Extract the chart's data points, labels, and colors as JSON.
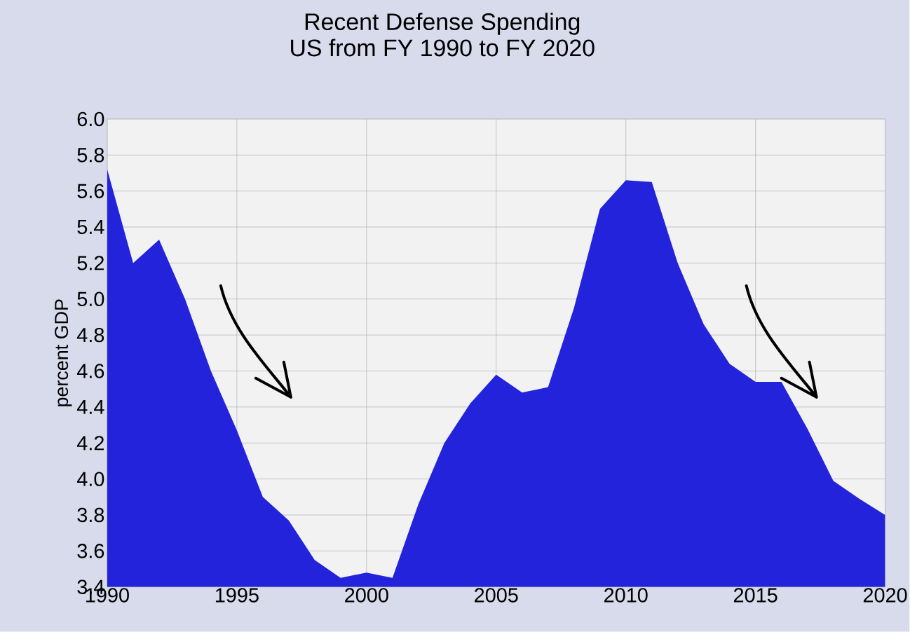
{
  "chart_data": {
    "type": "area",
    "title": "Recent Defense Spending",
    "subtitle": "US from FY 1990 to FY 2020",
    "ylabel": "percent GDP",
    "series": [
      {
        "color": "#2323dc",
        "x": [
          1990,
          1991,
          1992,
          1993,
          1994,
          1995,
          1996,
          1997,
          1998,
          1999,
          2000,
          2001,
          2002,
          2003,
          2004,
          2005,
          2006,
          2007,
          2008,
          2009,
          2010,
          2011,
          2012,
          2013,
          2014,
          2015,
          2016,
          2017,
          2018,
          2019,
          2020
        ],
        "values": [
          5.72,
          5.2,
          5.33,
          5.0,
          4.6,
          4.27,
          3.9,
          3.77,
          3.55,
          3.45,
          3.48,
          3.45,
          3.86,
          4.2,
          4.42,
          4.58,
          4.48,
          4.51,
          4.95,
          5.5,
          5.66,
          5.65,
          5.2,
          4.86,
          4.64,
          4.54,
          4.54,
          4.28,
          3.99,
          3.89,
          3.8
        ]
      }
    ],
    "xlim": [
      1990,
      2020
    ],
    "xticks": [
      1990,
      1995,
      2000,
      2005,
      2010,
      2015,
      2020
    ],
    "ylim": [
      3.4,
      6.0
    ],
    "yticks": [
      {
        "value": 3.4,
        "label": "3.4"
      },
      {
        "value": 3.6,
        "label": "3.6"
      },
      {
        "value": 3.8,
        "label": "3.8"
      },
      {
        "value": 4.0,
        "label": "4.0"
      },
      {
        "value": 4.2,
        "label": "4.2"
      },
      {
        "value": 4.4,
        "label": "4.4"
      },
      {
        "value": 4.6,
        "label": "4.6"
      },
      {
        "value": 4.8,
        "label": "4.8"
      },
      {
        "value": 5.0,
        "label": "5.0"
      },
      {
        "value": 5.2,
        "label": "5.2"
      },
      {
        "value": 5.4,
        "label": "5.4"
      },
      {
        "value": 5.6,
        "label": "5.6"
      },
      {
        "value": 5.8,
        "label": "5.8"
      },
      {
        "value": 6.0,
        "label": "6.0"
      }
    ],
    "grid": true
  }
}
